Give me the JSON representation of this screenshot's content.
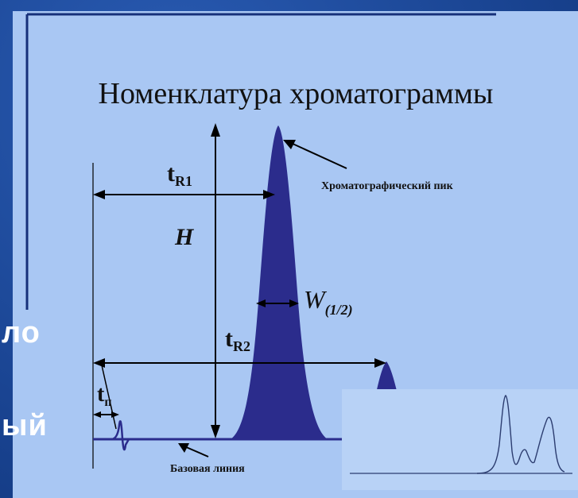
{
  "title": "Номенклатура хроматограммы",
  "labels": {
    "tR1": "t",
    "tR1_sub": "R1",
    "H": "H",
    "W": "W",
    "W_sub": "(1/2)",
    "tR2": "t",
    "tR2_sub": "R2",
    "t0": "t",
    "t0_sub": "п",
    "peak_label": "Хроматографический пик",
    "baseline_label": "Базовая линия"
  },
  "overlay": {
    "word1": "ло",
    "word2": "ый"
  },
  "colors": {
    "background": "#1e4a9a",
    "panel": "#a9c7f3",
    "peak_fill": "#2b2c8c",
    "baseline": "#2b2c8c",
    "arrow": "#000000",
    "frame": "#16307a"
  }
}
